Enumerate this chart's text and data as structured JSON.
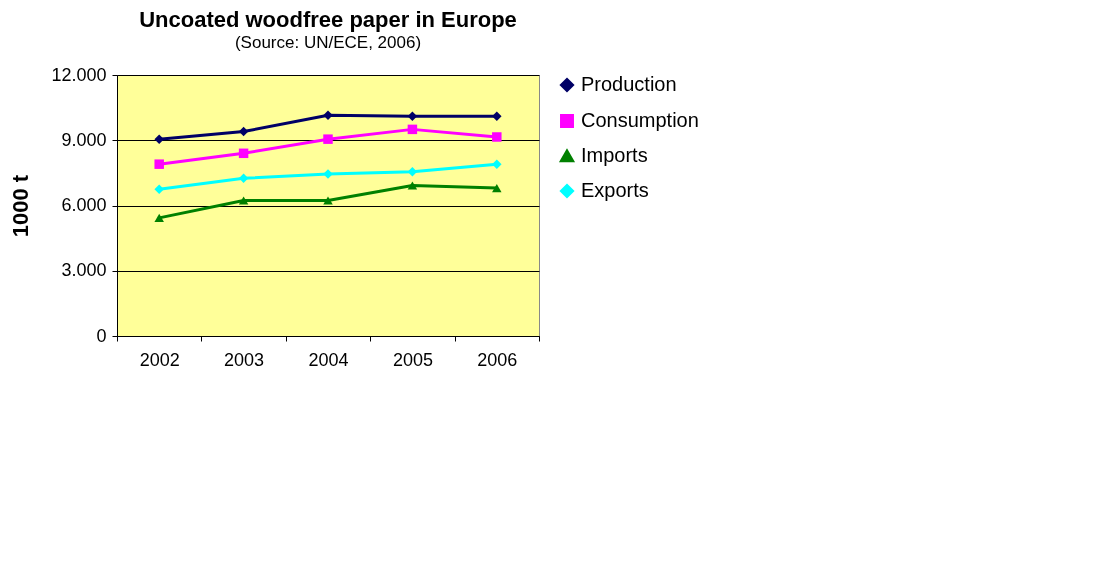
{
  "chart_data": {
    "type": "line",
    "title": "Uncoated woodfree paper in Europe",
    "subtitle": "(Source: UN/ECE, 2006)",
    "ylabel": "1000 t",
    "categories": [
      "2002",
      "2003",
      "2004",
      "2005",
      "2006"
    ],
    "series": [
      {
        "name": "Production",
        "color": "#000066",
        "marker": "diamond",
        "values": [
          9050,
          9400,
          10150,
          10100,
          10100
        ]
      },
      {
        "name": "Consumption",
        "color": "#ff00ff",
        "marker": "square",
        "values": [
          7900,
          8400,
          9050,
          9500,
          9150
        ]
      },
      {
        "name": "Imports",
        "color": "#008000",
        "marker": "triangle",
        "values": [
          5430,
          6230,
          6230,
          6920,
          6800
        ]
      },
      {
        "name": "Exports",
        "color": "#00ffff",
        "marker": "diamond",
        "values": [
          6750,
          7250,
          7450,
          7550,
          7900
        ]
      }
    ],
    "ylim": [
      0,
      12000
    ],
    "yticks": [
      {
        "value": 0,
        "label": "0"
      },
      {
        "value": 3000,
        "label": "3.000"
      },
      {
        "value": 6000,
        "label": "6.000"
      },
      {
        "value": 9000,
        "label": "9.000"
      },
      {
        "value": 12000,
        "label": "12.000"
      }
    ],
    "grid": "y",
    "legend": "right"
  }
}
